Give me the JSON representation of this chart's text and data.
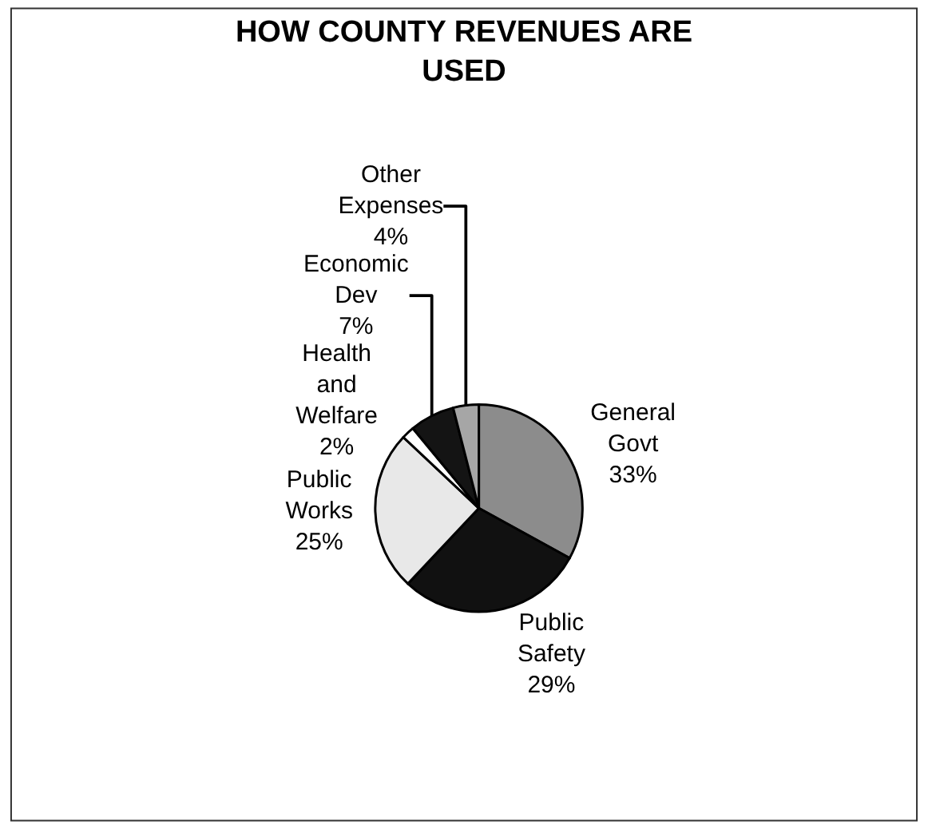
{
  "chart_data": {
    "type": "pie",
    "title": "HOW COUNTY REVENUES ARE USED",
    "categories": [
      "General Govt",
      "Public Safety",
      "Public Works",
      "Health and Welfare",
      "Economic Dev",
      "Other Expenses"
    ],
    "values": [
      33,
      29,
      25,
      2,
      7,
      4
    ],
    "colors": [
      "#8c8c8c",
      "#111111",
      "#e8e8e8",
      "#ffffff",
      "#141414",
      "#a6a6a6"
    ],
    "value_labels": [
      "33%",
      "29%",
      "25%",
      "2%",
      "7%",
      "4%"
    ],
    "legend": false
  }
}
